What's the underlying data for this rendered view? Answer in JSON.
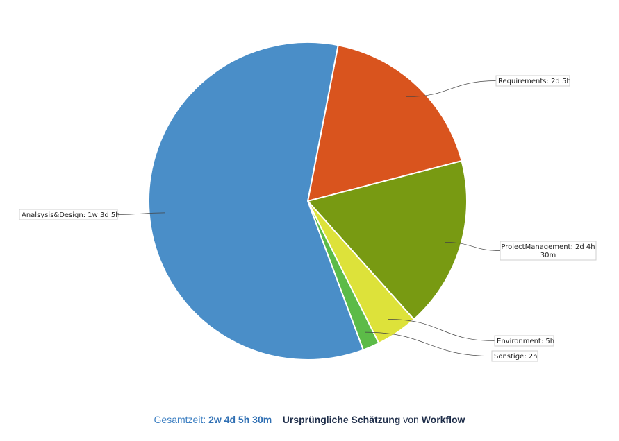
{
  "chart_data": {
    "type": "pie",
    "slices": [
      {
        "label": "Requirements: 2d 5h",
        "hours": 21,
        "color": "#d9541e"
      },
      {
        "label": "ProjectManagement: 2d 4h 30m",
        "hours": 20.5,
        "color": "#789a12"
      },
      {
        "label": "Environment: 5h",
        "hours": 5,
        "color": "#dde23a"
      },
      {
        "label": "Sonstige: 2h",
        "hours": 2,
        "color": "#5cbb48"
      },
      {
        "label": "Analsysis&Design: 1w 3d 5h",
        "hours": 69,
        "color": "#4a8ec8"
      }
    ]
  },
  "footer": {
    "total_label": "Gesamtzeit:",
    "total_value": "2w 4d 5h 30m",
    "estimate_label": "Ursprüngliche Schätzung",
    "von": "von",
    "workflow": "Workflow"
  }
}
